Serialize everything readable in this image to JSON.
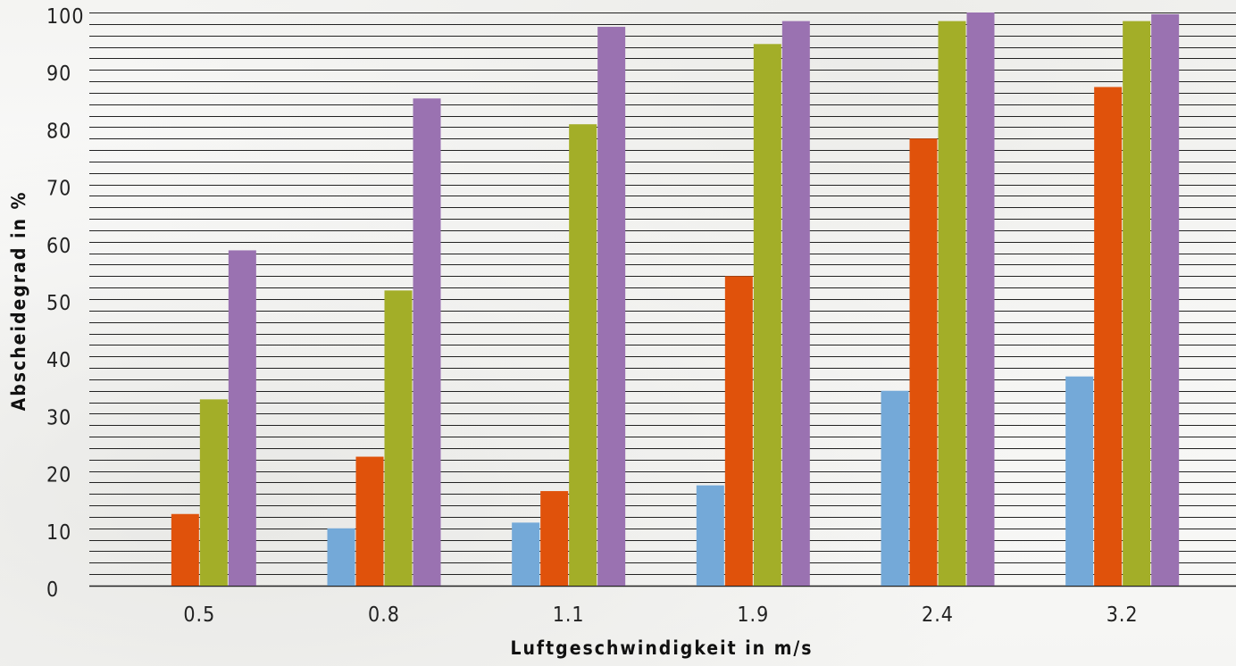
{
  "chart_data": {
    "type": "bar",
    "title": "",
    "xlabel": "Luftgeschwindigkeit in m/s",
    "ylabel": "Abscheidegrad in %",
    "categories": [
      "0.5",
      "0.8",
      "1.1",
      "1.9",
      "2.4",
      "3.2"
    ],
    "ylim": [
      0,
      100
    ],
    "yticks": [
      "0",
      "10",
      "20",
      "30",
      "40",
      "50",
      "60",
      "70",
      "80",
      "90",
      "100"
    ],
    "grid": true,
    "legend": "none",
    "series": [
      {
        "color": "#74a9d8",
        "values": [
          0,
          10,
          11,
          17.5,
          34,
          36.5
        ]
      },
      {
        "color": "#e0520b",
        "values": [
          12.5,
          22.5,
          16.5,
          54,
          78,
          87
        ]
      },
      {
        "color": "#a3ae28",
        "values": [
          32.5,
          51.5,
          80.5,
          94.5,
          98.5,
          98.5
        ]
      },
      {
        "color": "#9a72b1",
        "values": [
          58.5,
          85,
          97.5,
          98.5,
          100,
          99.7
        ]
      }
    ]
  }
}
